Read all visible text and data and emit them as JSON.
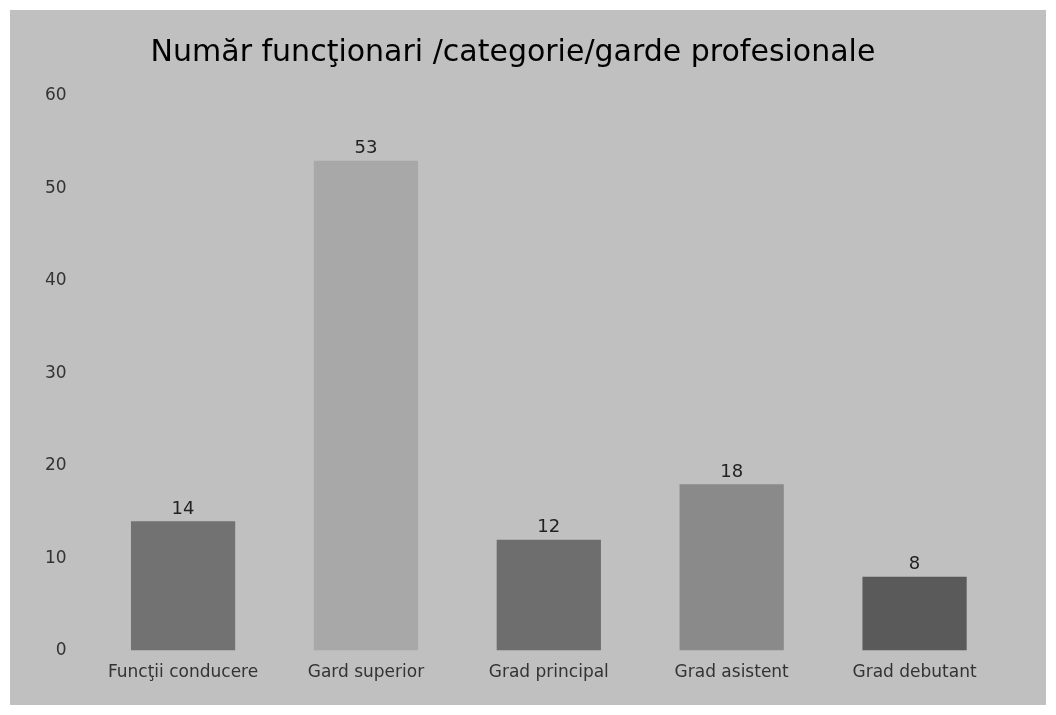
{
  "chart_data": {
    "type": "bar",
    "title": "Număr funcţionari /categorie/garde profesionale",
    "categories": [
      "Funcţii conducere",
      "Gard superior",
      "Grad principal",
      "Grad asistent",
      "Grad debutant"
    ],
    "values": [
      14,
      53,
      12,
      18,
      8
    ],
    "colors": [
      "#727272",
      "#a8a8a8",
      "#6e6e6e",
      "#8a8a8a",
      "#5a5a5a"
    ],
    "ylim": [
      0,
      60
    ],
    "yticks": [
      0,
      10,
      20,
      30,
      40,
      50,
      60
    ],
    "grid": false,
    "legend": false,
    "data_labels": true
  }
}
